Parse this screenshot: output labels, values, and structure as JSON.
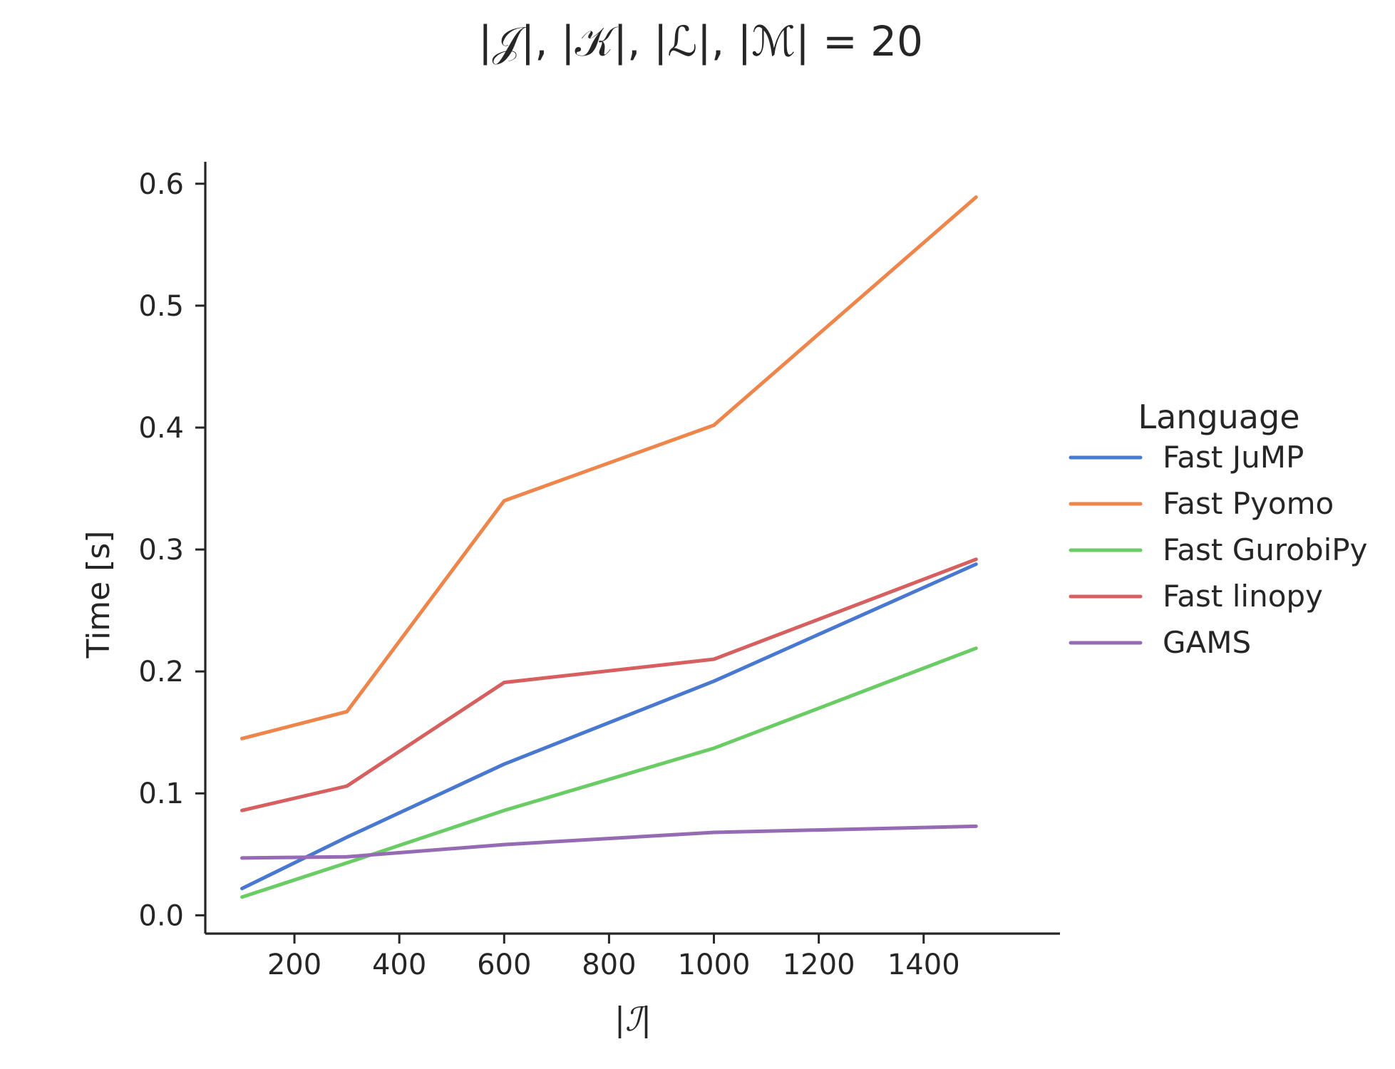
{
  "chart_data": {
    "type": "line",
    "title": "|𝒥|, |𝒦|, |ℒ|, |ℳ| = 20",
    "xlabel": "|ℐ|",
    "ylabel": "Time [s]",
    "xlim": [
      30,
      1660
    ],
    "ylim": [
      -0.015,
      0.618
    ],
    "xticks": [
      200,
      400,
      600,
      800,
      1000,
      1200,
      1400
    ],
    "yticks": [
      0.0,
      0.1,
      0.2,
      0.3,
      0.4,
      0.5,
      0.6
    ],
    "ytick_labels": [
      "0.0",
      "0.1",
      "0.2",
      "0.3",
      "0.4",
      "0.5",
      "0.6"
    ],
    "grid": false,
    "legend": {
      "title": "Language",
      "placement": "right"
    },
    "x": [
      100,
      300,
      600,
      1000,
      1500
    ],
    "series": [
      {
        "name": "Fast JuMP",
        "color": "#4878d0",
        "values": [
          0.022,
          0.064,
          0.124,
          0.192,
          0.288
        ]
      },
      {
        "name": "Fast Pyomo",
        "color": "#ee854a",
        "values": [
          0.145,
          0.167,
          0.34,
          0.402,
          0.589
        ]
      },
      {
        "name": "Fast GurobiPy",
        "color": "#6acc64",
        "values": [
          0.015,
          0.043,
          0.086,
          0.137,
          0.219
        ]
      },
      {
        "name": "Fast linopy",
        "color": "#d65f5f",
        "values": [
          0.086,
          0.106,
          0.191,
          0.21,
          0.292
        ]
      },
      {
        "name": "GAMS",
        "color": "#956cb4",
        "values": [
          0.047,
          0.048,
          0.058,
          0.068,
          0.073
        ]
      }
    ]
  }
}
